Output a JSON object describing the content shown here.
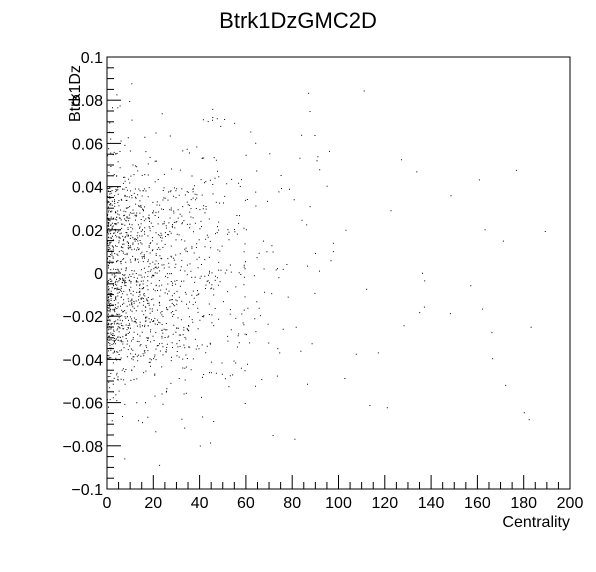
{
  "chart_data": {
    "type": "scatter",
    "title": "Btrk1DzGMC2D",
    "xlabel": "Centrality",
    "ylabel": "Btrk1Dz",
    "xlim": [
      0,
      200
    ],
    "ylim": [
      -0.1,
      0.1
    ],
    "x_ticks": [
      0,
      20,
      40,
      60,
      80,
      100,
      120,
      140,
      160,
      180,
      200
    ],
    "x_tick_labels": [
      "0",
      "20",
      "40",
      "60",
      "80",
      "100",
      "120",
      "140",
      "160",
      "180",
      "200"
    ],
    "y_ticks": [
      -0.1,
      -0.08,
      -0.06,
      -0.04,
      -0.02,
      0,
      0.02,
      0.04,
      0.06,
      0.08,
      0.1
    ],
    "y_tick_labels": [
      "−0.1",
      "−0.08",
      "−0.06",
      "−0.04",
      "−0.02",
      "0",
      "0.02",
      "0.04",
      "0.06",
      "0.08",
      "0.1"
    ],
    "grid": false,
    "legend": "none",
    "marker_color": "#000000",
    "series": [
      {
        "density_profile": {
          "x": [
            0,
            10,
            20,
            30,
            40,
            50,
            60,
            70,
            80,
            100,
            120,
            140,
            160,
            180,
            200
          ],
          "relative_density": [
            1.0,
            0.95,
            0.85,
            0.7,
            0.5,
            0.35,
            0.22,
            0.14,
            0.09,
            0.05,
            0.035,
            0.025,
            0.02,
            0.015,
            0.01
          ]
        },
        "core_band": {
          "y_range": [
            -0.04,
            0.04
          ],
          "x_max": 40
        }
      }
    ]
  }
}
